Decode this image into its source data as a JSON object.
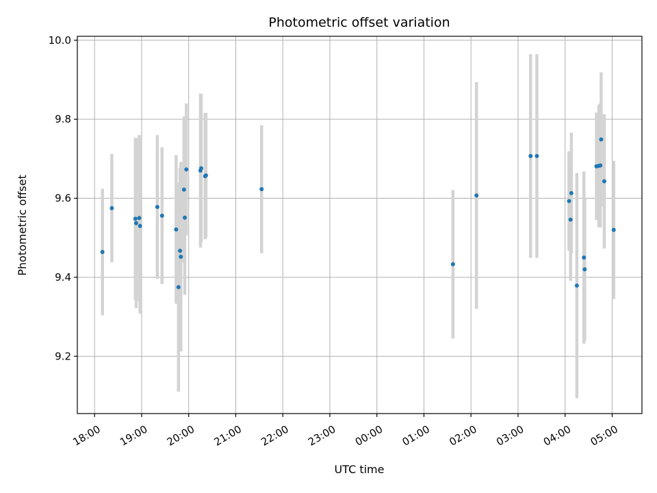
{
  "chart_data": {
    "type": "scatter",
    "title": "Photometric offset variation",
    "xlabel": "UTC time",
    "ylabel": "Photometric offset",
    "x_axis": {
      "kind": "time",
      "range": [
        "17:38",
        "05:38"
      ],
      "ticks": [
        "18:00",
        "19:00",
        "20:00",
        "21:00",
        "22:00",
        "23:00",
        "00:00",
        "01:00",
        "02:00",
        "03:00",
        "04:00",
        "05:00"
      ]
    },
    "y_axis": {
      "range": [
        9.055,
        10.01
      ],
      "ticks": [
        "9.2",
        "9.4",
        "9.6",
        "9.8",
        "10.0"
      ]
    },
    "grid": true,
    "colors": {
      "point": "#1f77b4",
      "errorbar": "#d3d3d3",
      "grid": "#b0b0b0"
    },
    "points": [
      {
        "t": "18:10",
        "y": 9.464,
        "err": 0.16
      },
      {
        "t": "18:22",
        "y": 9.575,
        "err": 0.137
      },
      {
        "t": "18:52",
        "y": 9.548,
        "err": 0.205
      },
      {
        "t": "18:53",
        "y": 9.537,
        "err": 0.215
      },
      {
        "t": "18:57",
        "y": 9.55,
        "err": 0.21
      },
      {
        "t": "18:58",
        "y": 9.53,
        "err": 0.222
      },
      {
        "t": "19:20",
        "y": 9.578,
        "err": 0.182
      },
      {
        "t": "19:26",
        "y": 9.556,
        "err": 0.173
      },
      {
        "t": "19:44",
        "y": 9.521,
        "err": 0.188
      },
      {
        "t": "19:47",
        "y": 9.375,
        "err": 0.265
      },
      {
        "t": "19:49",
        "y": 9.467,
        "err": 0.21
      },
      {
        "t": "19:50",
        "y": 9.452,
        "err": 0.24
      },
      {
        "t": "19:54",
        "y": 9.622,
        "err": 0.185
      },
      {
        "t": "19:55",
        "y": 9.551,
        "err": 0.195
      },
      {
        "t": "19:57",
        "y": 9.673,
        "err": 0.167
      },
      {
        "t": "20:15",
        "y": 9.67,
        "err": 0.195
      },
      {
        "t": "20:16",
        "y": 9.676,
        "err": 0.188
      },
      {
        "t": "20:21",
        "y": 9.656,
        "err": 0.16
      },
      {
        "t": "20:22",
        "y": 9.658,
        "err": 0.158
      },
      {
        "t": "21:33",
        "y": 9.623,
        "err": 0.162
      },
      {
        "t": "01:37",
        "y": 9.433,
        "err": 0.188
      },
      {
        "t": "02:07",
        "y": 9.607,
        "err": 0.287
      },
      {
        "t": "03:16",
        "y": 9.707,
        "err": 0.258
      },
      {
        "t": "03:24",
        "y": 9.707,
        "err": 0.258
      },
      {
        "t": "04:05",
        "y": 9.593,
        "err": 0.126
      },
      {
        "t": "04:07",
        "y": 9.546,
        "err": 0.155
      },
      {
        "t": "04:08",
        "y": 9.613,
        "err": 0.153
      },
      {
        "t": "04:15",
        "y": 9.379,
        "err": 0.285
      },
      {
        "t": "04:24",
        "y": 9.45,
        "err": 0.218
      },
      {
        "t": "04:25",
        "y": 9.42,
        "err": 0.18
      },
      {
        "t": "04:40",
        "y": 9.681,
        "err": 0.136
      },
      {
        "t": "04:43",
        "y": 9.682,
        "err": 0.155
      },
      {
        "t": "04:45",
        "y": 9.683,
        "err": 0.157
      },
      {
        "t": "04:46",
        "y": 9.749,
        "err": 0.17
      },
      {
        "t": "04:50",
        "y": 9.643,
        "err": 0.17
      },
      {
        "t": "05:02",
        "y": 9.52,
        "err": 0.175
      }
    ]
  }
}
